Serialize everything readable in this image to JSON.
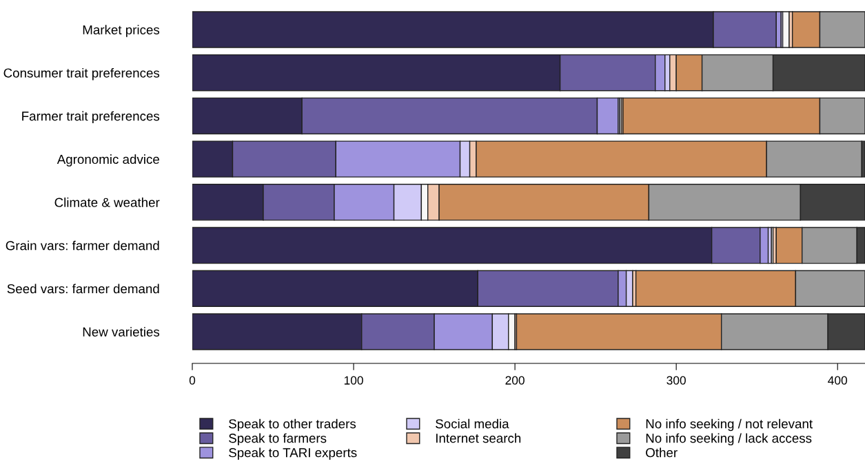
{
  "chart_data": {
    "type": "bar",
    "orientation": "horizontal",
    "stacked": true,
    "categories": [
      "Market prices",
      "Consumer trait preferences",
      "Farmer trait preferences",
      "Agronomic advice",
      "Climate & weather",
      "Grain vars: farmer demand",
      "Seed vars: farmer demand",
      "New varieties"
    ],
    "series": [
      {
        "name": "Speak to other traders",
        "color": "#312a54",
        "values": [
          323,
          228,
          68,
          25,
          44,
          322,
          177,
          105
        ]
      },
      {
        "name": "Speak to farmers",
        "color": "#695d9f",
        "values": [
          39,
          59,
          183,
          64,
          44,
          30,
          87,
          45
        ]
      },
      {
        "name": "Speak to TARI experts",
        "color": "#9e93de",
        "values": [
          3,
          6,
          13,
          77,
          37,
          5,
          5,
          36
        ]
      },
      {
        "name": "Social media",
        "color": "#d0caf7",
        "values": [
          1,
          3,
          1,
          6,
          17,
          2,
          4,
          10
        ]
      },
      {
        "color": "#f7f7f7",
        "values": [
          4,
          0,
          1,
          0,
          4,
          1,
          0,
          4
        ]
      },
      {
        "name": "Internet search",
        "color": "#f1c7ae",
        "values": [
          2,
          4,
          1,
          4,
          7,
          2,
          2,
          1
        ]
      },
      {
        "name": "No info seeking / not relevant",
        "color": "#cc8d5b",
        "values": [
          17,
          16,
          122,
          180,
          130,
          16,
          99,
          127
        ]
      },
      {
        "name": "No info seeking / lack access",
        "color": "#9b9b9b",
        "values": [
          28,
          44,
          28,
          59,
          94,
          34,
          43,
          66
        ]
      },
      {
        "name": "Other",
        "color": "#404040",
        "values": [
          0,
          57,
          0,
          2,
          40,
          5,
          0,
          23
        ]
      }
    ],
    "xlim": [
      0,
      417
    ],
    "xticks": [
      0,
      100,
      200,
      300,
      400
    ],
    "grid": false,
    "legend": "bottom"
  }
}
